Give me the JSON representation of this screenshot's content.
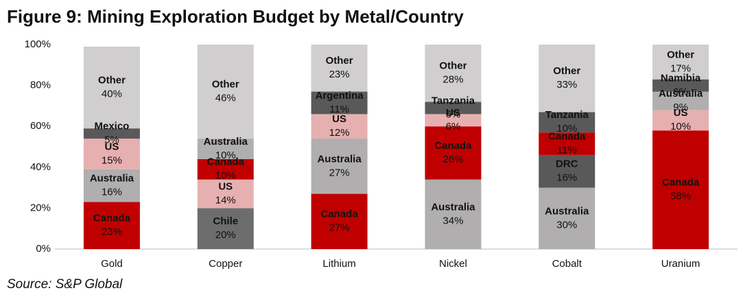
{
  "chart_data": {
    "type": "stacked_bar_percent",
    "title": "Figure 9: Mining Exploration Budget by Metal/Country",
    "source": "Source: S&P Global",
    "ylim": [
      0,
      100
    ],
    "yticks": [
      {
        "value": 0,
        "label": "0%"
      },
      {
        "value": 20,
        "label": "20%"
      },
      {
        "value": 40,
        "label": "40%"
      },
      {
        "value": 60,
        "label": "60%"
      },
      {
        "value": 80,
        "label": "80%"
      },
      {
        "value": 100,
        "label": "100%"
      }
    ],
    "categories": [
      "Gold",
      "Copper",
      "Lithium",
      "Nickel",
      "Cobalt",
      "Uranium"
    ],
    "bars": [
      {
        "names": [
          "Canada",
          "Australia",
          "US",
          "Mexico",
          "Other"
        ],
        "values": [
          23,
          16,
          15,
          5,
          40
        ],
        "value_labels": [
          "23%",
          "16%",
          "15%",
          "5%",
          "40%"
        ],
        "colors": [
          "#c00000",
          "#b0aeae",
          "#e6b0b0",
          "#595959",
          "#d0cece"
        ]
      },
      {
        "names": [
          "Chile",
          "US",
          "Canada",
          "Australia",
          "Other"
        ],
        "values": [
          20,
          14,
          10,
          10,
          46
        ],
        "value_labels": [
          "20%",
          "14%",
          "10%",
          "10%",
          "46%"
        ],
        "colors": [
          "#6d6d6d",
          "#e6b0b0",
          "#c00000",
          "#b0aeae",
          "#d0cece"
        ]
      },
      {
        "names": [
          "Canada",
          "Australia",
          "US",
          "Argentina",
          "Other"
        ],
        "values": [
          27,
          27,
          12,
          11,
          23
        ],
        "value_labels": [
          "27%",
          "27%",
          "12%",
          "11%",
          "23%"
        ],
        "colors": [
          "#c00000",
          "#b0aeae",
          "#e6b0b0",
          "#595959",
          "#d0cece"
        ]
      },
      {
        "names": [
          "Australia",
          "Canada",
          "US",
          "Tanzania",
          "Other"
        ],
        "values": [
          34,
          26,
          6,
          6,
          28
        ],
        "value_labels": [
          "34%",
          "26%",
          "6%",
          "6%",
          "28%"
        ],
        "colors": [
          "#b0aeae",
          "#c00000",
          "#e6b0b0",
          "#595959",
          "#d0cece"
        ]
      },
      {
        "names": [
          "Australia",
          "DRC",
          "Canada",
          "Tanzania",
          "Other"
        ],
        "values": [
          30,
          16,
          11,
          10,
          33
        ],
        "value_labels": [
          "30%",
          "16%",
          "11%",
          "10%",
          "33%"
        ],
        "colors": [
          "#b0aeae",
          "#595959",
          "#c00000",
          "#595959",
          "#d0cece"
        ]
      },
      {
        "names": [
          "Canada",
          "US",
          "Australia",
          "Namibia",
          "Other"
        ],
        "values": [
          58,
          10,
          9,
          6,
          17
        ],
        "value_labels": [
          "58%",
          "10%",
          "9%",
          "6%",
          "17%"
        ],
        "colors": [
          "#c00000",
          "#e6b0b0",
          "#b0aeae",
          "#595959",
          "#d0cece"
        ]
      }
    ]
  }
}
